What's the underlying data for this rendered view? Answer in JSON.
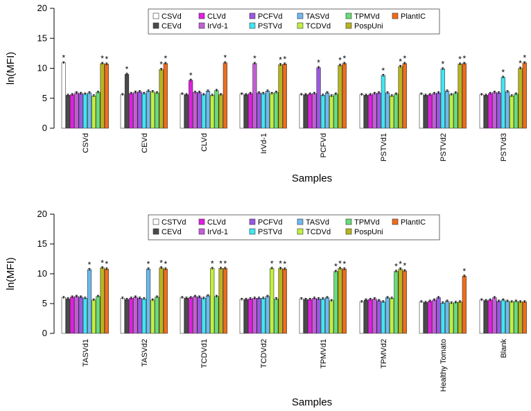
{
  "chart_data": [
    {
      "type": "bar",
      "ylabel": "ln(MFI)",
      "xlabel": "Samples",
      "ylim": [
        0,
        20
      ],
      "yticks": [
        0,
        5,
        10,
        15,
        20
      ],
      "legend_position": "top-center",
      "colors": [
        "#ffffff",
        "#4a4a4a",
        "#e11ee1",
        "#c55cd7",
        "#9b57e3",
        "#3fe6f2",
        "#6fb9ee",
        "#c0f040",
        "#68dc7a",
        "#b7b51c",
        "#ef6d1a"
      ],
      "series": [
        {
          "name": "CSVd"
        },
        {
          "name": "CEVd"
        },
        {
          "name": "CLVd"
        },
        {
          "name": "IrVd-1"
        },
        {
          "name": "PCFVd"
        },
        {
          "name": "PSTVd"
        },
        {
          "name": "TASVd"
        },
        {
          "name": "TCDVd"
        },
        {
          "name": "TPMVd"
        },
        {
          "name": "PospUni"
        },
        {
          "name": "PlantIC"
        }
      ],
      "categories": [
        "CSVd",
        "CEVd",
        "CLVd",
        "IrVd-1",
        "PCFVd",
        "PSTVd1",
        "PSTVd2",
        "PSTVd3"
      ],
      "values": [
        [
          10.9,
          5.5,
          5.6,
          5.9,
          5.8,
          5.7,
          5.9,
          5.4,
          6.0,
          10.8,
          10.7
        ],
        [
          5.6,
          9.0,
          5.8,
          6.0,
          6.1,
          5.8,
          6.2,
          6.1,
          5.9,
          9.8,
          10.8
        ],
        [
          5.7,
          5.6,
          8.0,
          6.0,
          6.0,
          5.6,
          6.2,
          5.5,
          6.3,
          5.6,
          10.9
        ],
        [
          5.7,
          5.6,
          5.8,
          10.8,
          5.9,
          5.8,
          6.2,
          5.8,
          6.0,
          10.6,
          10.7
        ],
        [
          5.6,
          5.6,
          5.7,
          5.8,
          10.1,
          5.5,
          5.9,
          5.4,
          5.7,
          10.5,
          10.8
        ],
        [
          5.6,
          5.5,
          5.6,
          5.8,
          5.9,
          8.8,
          5.9,
          5.4,
          5.7,
          10.3,
          10.8
        ],
        [
          5.7,
          5.5,
          5.6,
          5.8,
          5.9,
          9.9,
          6.2,
          5.6,
          5.9,
          10.7,
          10.8
        ],
        [
          5.6,
          5.5,
          5.8,
          6.0,
          5.9,
          8.5,
          6.1,
          5.4,
          5.7,
          10.0,
          10.9
        ]
      ],
      "significant": [
        [
          0,
          9,
          10
        ],
        [
          1,
          9,
          10
        ],
        [
          2,
          10
        ],
        [
          3,
          9,
          10
        ],
        [
          4,
          9,
          10
        ],
        [
          5,
          9,
          10
        ],
        [
          5,
          9,
          10
        ],
        [
          5,
          9,
          10
        ]
      ],
      "significant_series": [
        [
          0,
          9,
          10
        ],
        [
          1,
          9,
          10
        ],
        [
          2,
          10
        ],
        [
          3,
          9,
          10
        ],
        [
          4,
          9,
          10
        ],
        [
          5,
          9,
          10
        ],
        [
          5,
          9,
          10
        ],
        [
          5,
          9,
          10
        ]
      ],
      "significance_marker": "*"
    },
    {
      "type": "bar",
      "ylabel": "ln(MFI)",
      "xlabel": "Samples",
      "ylim": [
        0,
        20
      ],
      "yticks": [
        0,
        5,
        10,
        15,
        20
      ],
      "legend_position": "top-center",
      "colors": [
        "#ffffff",
        "#4a4a4a",
        "#e11ee1",
        "#c55cd7",
        "#9b57e3",
        "#3fe6f2",
        "#6fb9ee",
        "#c0f040",
        "#68dc7a",
        "#b7b51c",
        "#ef6d1a"
      ],
      "series": [
        {
          "name": "CSTVd"
        },
        {
          "name": "CEVd"
        },
        {
          "name": "CLVd"
        },
        {
          "name": "IrVd-1"
        },
        {
          "name": "PCFVd"
        },
        {
          "name": "PSTVd"
        },
        {
          "name": "TASVd"
        },
        {
          "name": "TCDVd"
        },
        {
          "name": "TPMVd"
        },
        {
          "name": "PospUni"
        },
        {
          "name": "PlantIC"
        }
      ],
      "categories": [
        "TASVd1",
        "TASVd2",
        "TCDVd1",
        "TCDVd2",
        "TPMVd1",
        "TPMVd2",
        "Healthy Tomato",
        "Blank"
      ],
      "values": [
        [
          6.0,
          5.8,
          6.1,
          6.2,
          6.1,
          5.9,
          10.7,
          5.6,
          6.2,
          11.0,
          10.8
        ],
        [
          5.9,
          5.7,
          5.9,
          6.1,
          5.9,
          5.8,
          10.8,
          5.6,
          6.1,
          11.0,
          10.8
        ],
        [
          6.0,
          5.9,
          6.0,
          6.2,
          6.1,
          5.9,
          6.3,
          10.9,
          6.2,
          10.9,
          10.9
        ],
        [
          5.7,
          5.7,
          5.8,
          5.9,
          5.9,
          5.9,
          6.2,
          10.9,
          5.8,
          10.9,
          10.8
        ],
        [
          5.8,
          5.7,
          5.7,
          5.9,
          5.8,
          5.8,
          6.0,
          5.5,
          10.4,
          10.9,
          10.8
        ],
        [
          5.3,
          5.6,
          5.7,
          5.8,
          5.5,
          5.3,
          6.0,
          5.9,
          10.4,
          10.8,
          10.5
        ],
        [
          5.3,
          5.2,
          5.4,
          5.6,
          6.0,
          5.1,
          5.4,
          5.1,
          5.2,
          5.3,
          9.6
        ],
        [
          5.6,
          5.5,
          5.6,
          6.0,
          5.4,
          5.6,
          5.4,
          5.3,
          5.4,
          5.3,
          5.3
        ]
      ],
      "significant_series": [
        [
          6,
          9,
          10
        ],
        [
          6,
          9,
          10
        ],
        [
          7,
          9,
          10
        ],
        [
          7,
          9,
          10
        ],
        [
          8,
          9,
          10
        ],
        [
          8,
          9,
          10
        ],
        [
          10
        ],
        []
      ],
      "significance_marker": "*"
    }
  ]
}
